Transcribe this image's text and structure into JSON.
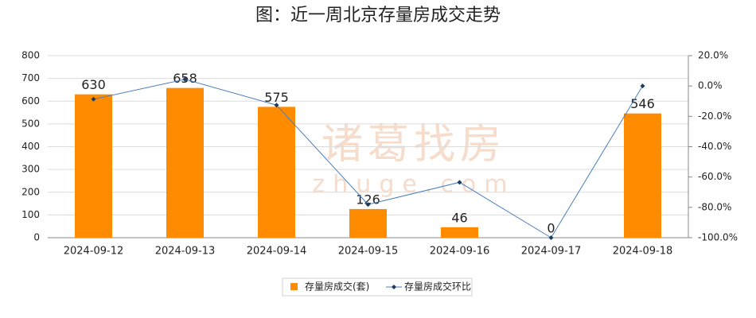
{
  "chart_data": {
    "type": "bar",
    "title": "图：近一周北京存量房成交走势",
    "watermark": [
      "诸葛找房",
      "zhuge.com"
    ],
    "categories": [
      "2024-09-12",
      "2024-09-13",
      "2024-09-14",
      "2024-09-15",
      "2024-09-16",
      "2024-09-17",
      "2024-09-18"
    ],
    "series": [
      {
        "name": "存量房成交(套)",
        "type": "bar",
        "color": "#ff8c00",
        "values": [
          630,
          658,
          575,
          126,
          46,
          0,
          546
        ]
      },
      {
        "name": "存量房成交环比",
        "type": "line",
        "axis": "y2",
        "color": "#4a7ebb",
        "values": [
          -8.7,
          4.4,
          -12.6,
          -78.1,
          -63.5,
          -100,
          0
        ]
      }
    ],
    "ylim": [
      0,
      800
    ],
    "yticks": [
      0,
      100,
      200,
      300,
      400,
      500,
      600,
      700,
      800
    ],
    "y2lim": [
      -100,
      20
    ],
    "y2ticks": [
      {
        "value": -100,
        "label": "-100.0%"
      },
      {
        "value": -80,
        "label": "-80.0%"
      },
      {
        "value": -60,
        "label": "-60.0%"
      },
      {
        "value": -40,
        "label": "-40.0%"
      },
      {
        "value": -20,
        "label": "-20.0%"
      },
      {
        "value": 0,
        "label": "0.0%"
      },
      {
        "value": 20,
        "label": "20.0%"
      }
    ],
    "grid": true
  }
}
